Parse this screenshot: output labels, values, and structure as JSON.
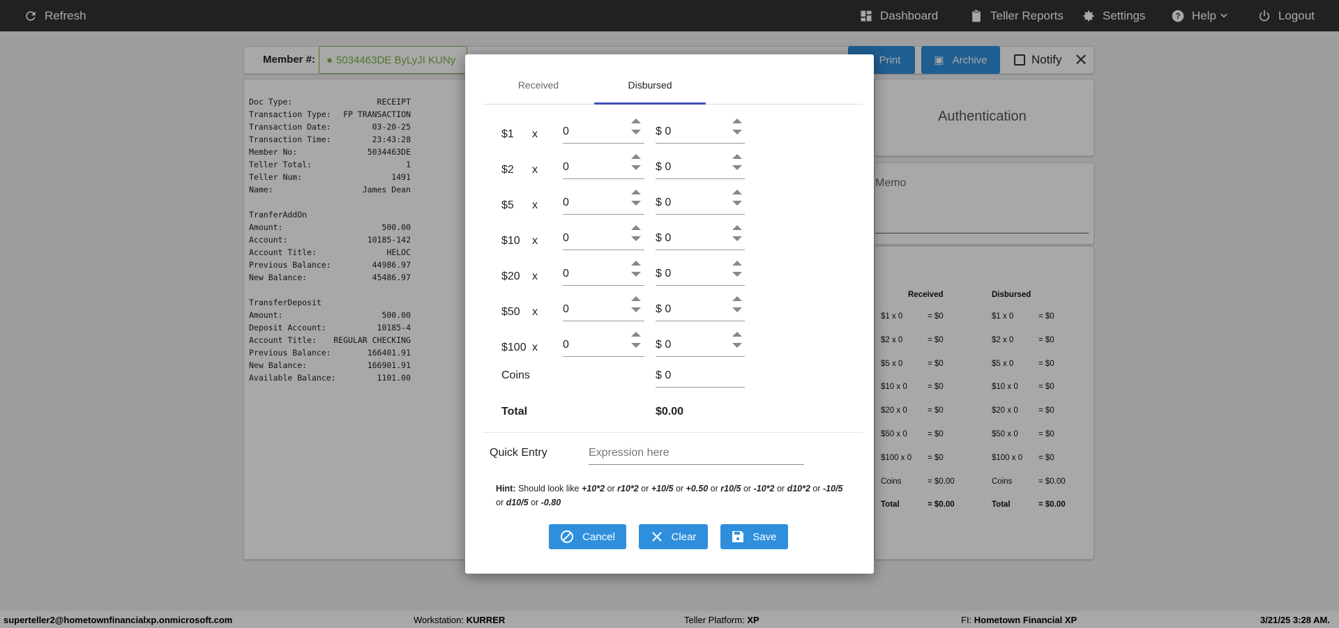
{
  "topbar": {
    "refresh": "Refresh",
    "dashboard": "Dashboard",
    "teller_reports": "Teller Reports",
    "settings": "Settings",
    "help": "Help",
    "logout": "Logout"
  },
  "member": {
    "label": "Member #:",
    "value": "5034463DE ByLyJI KUNy",
    "print": "Print",
    "archive": "Archive",
    "notify": "Notify",
    "notify_checked": false
  },
  "receipt": {
    "lines": [
      [
        "Doc Type:",
        "RECEIPT"
      ],
      [
        "Transaction Type:",
        "FP TRANSACTION"
      ],
      [
        "Transaction Date:",
        "03-20-25"
      ],
      [
        "Transaction Time:",
        "23:43:28"
      ],
      [
        "Member No:",
        "5034463DE"
      ],
      [
        "Teller Total:",
        "1"
      ],
      [
        "Teller Num:",
        "1491"
      ],
      [
        "Name:",
        "James Dean"
      ],
      [
        "",
        ""
      ],
      [
        "TranferAddOn",
        ""
      ],
      [
        "Amount:",
        "500.00"
      ],
      [
        "Account:",
        "10185-142"
      ],
      [
        "Account Title:",
        "HELOC"
      ],
      [
        "Previous Balance:",
        "44986.97"
      ],
      [
        "New Balance:",
        "45486.97"
      ],
      [
        "",
        ""
      ],
      [
        "TransferDeposit",
        ""
      ],
      [
        "Amount:",
        "500.00"
      ],
      [
        "Deposit Account:",
        "10185-4"
      ],
      [
        "Account Title:",
        "REGULAR CHECKING"
      ],
      [
        "Previous Balance:",
        "166401.91"
      ],
      [
        "New Balance:",
        "166901.91"
      ],
      [
        "Available Balance:",
        "1101.00"
      ]
    ]
  },
  "right": {
    "authentication": "Authentication",
    "memo": "Memo",
    "summary": {
      "received_header": "Received",
      "disbursed_header": "Disbursed",
      "received": [
        [
          "$1 x 0",
          "= $0"
        ],
        [
          "$2 x 0",
          "= $0"
        ],
        [
          "$5 x 0",
          "= $0"
        ],
        [
          "$10 x 0",
          "= $0"
        ],
        [
          "$20 x 0",
          "= $0"
        ],
        [
          "$50 x 0",
          "= $0"
        ],
        [
          "$100 x 0",
          "= $0"
        ],
        [
          "Coins",
          "= $0.00"
        ],
        [
          "Total",
          "= $0.00"
        ]
      ],
      "disbursed": [
        [
          "$1 x 0",
          "= $0"
        ],
        [
          "$2 x 0",
          "= $0"
        ],
        [
          "$5 x 0",
          "= $0"
        ],
        [
          "$10 x 0",
          "= $0"
        ],
        [
          "$20 x 0",
          "= $0"
        ],
        [
          "$50 x 0",
          "= $0"
        ],
        [
          "$100 x 0",
          "= $0"
        ],
        [
          "Coins",
          "= $0.00"
        ],
        [
          "Total",
          "= $0.00"
        ]
      ]
    }
  },
  "modal": {
    "tabs": [
      "Received",
      "Disbursed"
    ],
    "active_tab": "Disbursed",
    "times": "x",
    "currency": "$",
    "rows": [
      {
        "label": "$1",
        "count": "0",
        "amount": "0"
      },
      {
        "label": "$2",
        "count": "0",
        "amount": "0"
      },
      {
        "label": "$5",
        "count": "0",
        "amount": "0"
      },
      {
        "label": "$10",
        "count": "0",
        "amount": "0"
      },
      {
        "label": "$20",
        "count": "0",
        "amount": "0"
      },
      {
        "label": "$50",
        "count": "0",
        "amount": "0"
      },
      {
        "label": "$100",
        "count": "0",
        "amount": "0"
      }
    ],
    "coins_label": "Coins",
    "coins_value": "0",
    "total_label": "Total",
    "total_value": "$0.00",
    "quick_entry_label": "Quick Entry",
    "quick_entry_placeholder": "Expression here",
    "hint_label": "Hint:",
    "hint_prefix": "Should look like",
    "hint_examples": [
      "+10*2",
      "r10*2",
      "+10/5",
      "+0.50",
      "r10/5",
      "-10*2",
      "d10*2",
      "-10/5",
      "d10/5",
      "-0.80"
    ],
    "hint_sep": "or",
    "cancel": "Cancel",
    "clear": "Clear",
    "save": "Save"
  },
  "footer": {
    "user": "superteller2@hometownfinancialxp.onmicrosoft.com",
    "workstation_label": "Workstation:",
    "workstation": "KURRER",
    "platform_label": "Teller Platform:",
    "platform": "XP",
    "fi_label": "FI:",
    "fi": "Hometown Financial XP",
    "datetime": "3/21/25 3:28 AM."
  },
  "colors": {
    "accent": "#2f8fdc",
    "topbar": "#333333",
    "member_green": "#7cb342"
  }
}
